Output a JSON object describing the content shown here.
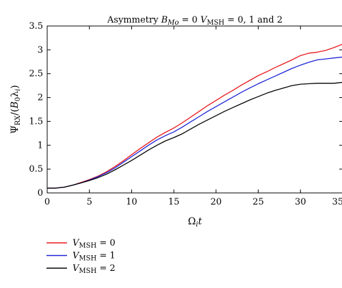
{
  "chart_data": {
    "type": "line",
    "title": {
      "prefix": "Asymmetry ",
      "b_symbol": "B",
      "b_sub": "Mo",
      "b_rest": " = 0 ",
      "v_symbol": "V",
      "v_sub": "MSH",
      "v_rest": " = 0, 1 and 2"
    },
    "xlabel": {
      "symbol": "Ω",
      "sub": "i",
      "rest": "t"
    },
    "ylabel": {
      "psi": "Ψ",
      "psi_sub": "RX",
      "mid": "/(",
      "b": "B",
      "b_sub": "0",
      "lambda": "λ",
      "lambda_sub": "i",
      "close": ")"
    },
    "xlim": [
      0,
      35
    ],
    "ylim": [
      0,
      3.5
    ],
    "xticks": [
      "0",
      "5",
      "10",
      "15",
      "20",
      "25",
      "30",
      "35"
    ],
    "yticks": [
      "0",
      "0.5",
      "1",
      "1.5",
      "2",
      "2.5",
      "3",
      "3.5"
    ],
    "grid": false,
    "legend_position": "below",
    "series": [
      {
        "name": {
          "symbol": "V",
          "sub": "MSH",
          "rest": " = 0"
        },
        "color": "#e8161b",
        "x": [
          0,
          1,
          2,
          3,
          4,
          5,
          6,
          7,
          8,
          9,
          10,
          11,
          12,
          13,
          14,
          15,
          16,
          17,
          18,
          19,
          20,
          21,
          22,
          23,
          24,
          25,
          26,
          27,
          28,
          29,
          30,
          31,
          32,
          33,
          34,
          35
        ],
        "y": [
          0.1,
          0.1,
          0.12,
          0.16,
          0.22,
          0.28,
          0.35,
          0.44,
          0.55,
          0.67,
          0.8,
          0.93,
          1.05,
          1.17,
          1.27,
          1.36,
          1.47,
          1.59,
          1.71,
          1.83,
          1.94,
          2.05,
          2.15,
          2.26,
          2.36,
          2.46,
          2.54,
          2.63,
          2.71,
          2.79,
          2.88,
          2.93,
          2.95,
          2.99,
          3.05,
          3.12
        ]
      },
      {
        "name": {
          "symbol": "V",
          "sub": "MSH",
          "rest": " = 1"
        },
        "color": "#1a22d6",
        "x": [
          0,
          1,
          2,
          3,
          4,
          5,
          6,
          7,
          8,
          9,
          10,
          11,
          12,
          13,
          14,
          15,
          16,
          17,
          18,
          19,
          20,
          21,
          22,
          23,
          24,
          25,
          26,
          27,
          28,
          29,
          30,
          31,
          32,
          33,
          34,
          35
        ],
        "y": [
          0.1,
          0.1,
          0.12,
          0.16,
          0.21,
          0.27,
          0.34,
          0.42,
          0.52,
          0.64,
          0.76,
          0.88,
          1.0,
          1.11,
          1.2,
          1.28,
          1.38,
          1.49,
          1.6,
          1.71,
          1.81,
          1.91,
          2.01,
          2.11,
          2.2,
          2.29,
          2.37,
          2.45,
          2.53,
          2.61,
          2.68,
          2.74,
          2.79,
          2.81,
          2.83,
          2.85
        ]
      },
      {
        "name": {
          "symbol": "V",
          "sub": "MSH",
          "rest": " = 2"
        },
        "color": "#000000",
        "x": [
          0,
          1,
          2,
          3,
          4,
          5,
          6,
          7,
          8,
          9,
          10,
          11,
          12,
          13,
          14,
          15,
          16,
          17,
          18,
          19,
          20,
          21,
          22,
          23,
          24,
          25,
          26,
          27,
          28,
          29,
          30,
          31,
          32,
          33,
          34,
          35
        ],
        "y": [
          0.1,
          0.1,
          0.12,
          0.16,
          0.21,
          0.26,
          0.32,
          0.39,
          0.48,
          0.58,
          0.68,
          0.79,
          0.9,
          1.0,
          1.09,
          1.16,
          1.24,
          1.34,
          1.44,
          1.53,
          1.62,
          1.71,
          1.79,
          1.87,
          1.95,
          2.02,
          2.09,
          2.15,
          2.2,
          2.25,
          2.28,
          2.29,
          2.3,
          2.3,
          2.3,
          2.32
        ]
      }
    ]
  }
}
